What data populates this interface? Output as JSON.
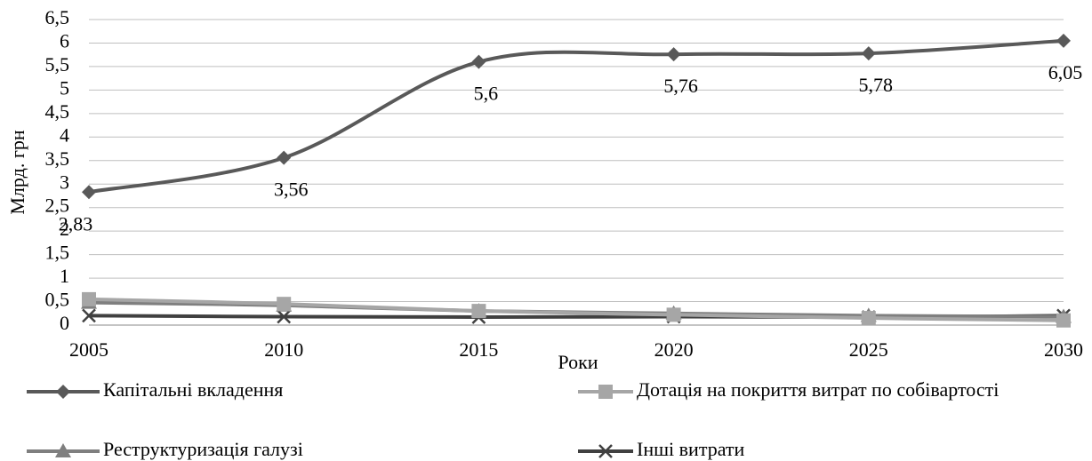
{
  "chart_data": {
    "type": "line",
    "x_label": "Роки",
    "y_label": "Млрд. грн",
    "categories": [
      "2005",
      "2010",
      "2015",
      "2020",
      "2025",
      "2030"
    ],
    "series": [
      {
        "name": "Капітальні вкладення",
        "color": "#595959",
        "marker": "diamond",
        "values": [
          2.83,
          3.56,
          5.6,
          5.76,
          5.78,
          6.05
        ],
        "value_labels": [
          "2,83",
          "3,56",
          "5,6",
          "5,76",
          "5,78",
          "6,05"
        ]
      },
      {
        "name": "Дотація на покриття витрат по собівартості",
        "color": "#a6a6a6",
        "marker": "square",
        "values": [
          0.55,
          0.45,
          0.3,
          0.22,
          0.15,
          0.1
        ]
      },
      {
        "name": "Реструктуризація галузі",
        "color": "#7f7f7f",
        "marker": "triangle",
        "values": [
          0.48,
          0.42,
          0.3,
          0.25,
          0.2,
          0.18
        ]
      },
      {
        "name": "Інші витрати",
        "color": "#404040",
        "marker": "x",
        "values": [
          0.2,
          0.18,
          0.17,
          0.18,
          0.17,
          0.2
        ]
      }
    ],
    "ylim": [
      0,
      6.5
    ],
    "yticks": [
      0,
      {
        "value": 0.5,
        "label": "0,5"
      },
      1,
      {
        "value": 1.5,
        "label": "1,5"
      },
      2,
      {
        "value": 2.5,
        "label": "2,5"
      },
      3,
      {
        "value": 3.5,
        "label": "3,5"
      },
      4,
      {
        "value": 4.5,
        "label": "4,5"
      },
      5,
      {
        "value": 5.5,
        "label": "5,5"
      },
      6,
      {
        "value": 6.5,
        "label": "6,5"
      }
    ],
    "grid": true,
    "legend": "bottom"
  }
}
